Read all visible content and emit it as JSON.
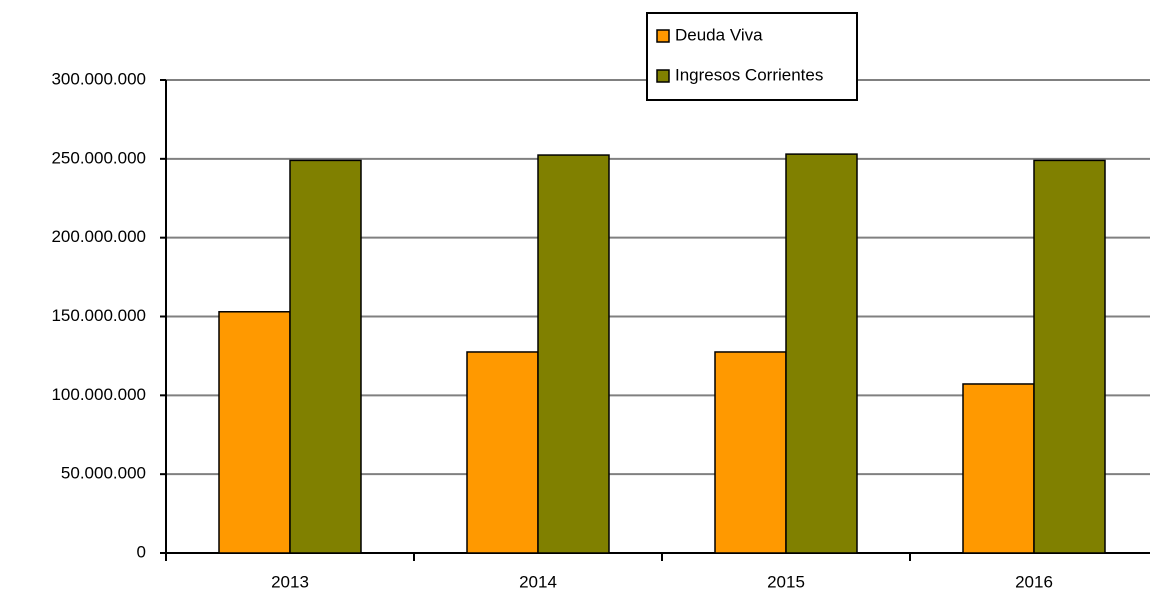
{
  "chart_data": {
    "type": "bar",
    "categories": [
      "2013",
      "2014",
      "2015",
      "2016"
    ],
    "series": [
      {
        "name": "Deuda Viva",
        "color": "#ff9900",
        "values": [
          153000000,
          127500000,
          127500000,
          107200000
        ]
      },
      {
        "name": "Ingresos Corrientes",
        "color": "#808000",
        "values": [
          249000000,
          252400000,
          253000000,
          249000000
        ]
      }
    ],
    "ylim": [
      0,
      300000000
    ],
    "yticks": [
      0,
      {
        "value": 50000000,
        "label": "50.000.000"
      },
      {
        "value": 100000000,
        "label": "100.000.000"
      },
      {
        "value": 150000000,
        "label": "150.000.000"
      },
      {
        "value": 200000000,
        "label": "200.000.000"
      },
      {
        "value": 250000000,
        "label": "250.000.000"
      },
      {
        "value": 300000000,
        "label": "300.000.000"
      }
    ],
    "grid": true
  }
}
